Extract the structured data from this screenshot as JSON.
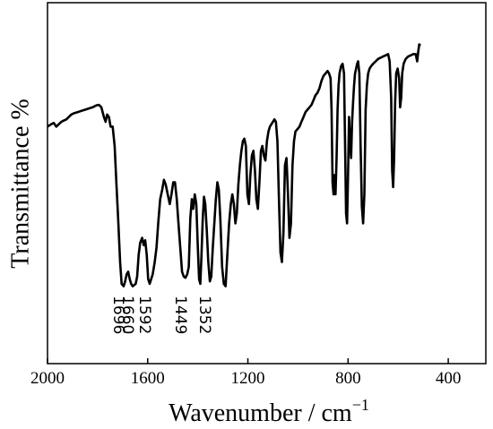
{
  "chart_data": {
    "type": "line",
    "title": "",
    "xlabel": "Wavenumber / cm",
    "xlabel_superscript": "−1",
    "ylabel": "Transmittance %",
    "xlim": [
      2000,
      250
    ],
    "x_reversed": true,
    "ylim": [
      0,
      100
    ],
    "y_tick_labels_shown": false,
    "grid": false,
    "x_ticks": [
      {
        "value": 2000,
        "label": "2000"
      },
      {
        "value": 1600,
        "label": "1600"
      },
      {
        "value": 1200,
        "label": "1200"
      },
      {
        "value": 800,
        "label": "800"
      },
      {
        "value": 400,
        "label": "400"
      }
    ],
    "series": [
      {
        "color": "#000000",
        "points": [
          [
            2000,
            68
          ],
          [
            1985,
            69
          ],
          [
            1975,
            69.5
          ],
          [
            1965,
            68
          ],
          [
            1955,
            69
          ],
          [
            1945,
            70
          ],
          [
            1935,
            70.5
          ],
          [
            1925,
            71
          ],
          [
            1915,
            72
          ],
          [
            1905,
            73
          ],
          [
            1895,
            73.5
          ],
          [
            1880,
            74
          ],
          [
            1865,
            74.5
          ],
          [
            1850,
            75
          ],
          [
            1835,
            75.5
          ],
          [
            1820,
            76
          ],
          [
            1805,
            76.8
          ],
          [
            1795,
            77
          ],
          [
            1785,
            76
          ],
          [
            1775,
            72
          ],
          [
            1768,
            70
          ],
          [
            1762,
            73
          ],
          [
            1755,
            72
          ],
          [
            1748,
            68
          ],
          [
            1740,
            68
          ],
          [
            1732,
            60
          ],
          [
            1725,
            45
          ],
          [
            1718,
            30
          ],
          [
            1710,
            12
          ],
          [
            1704,
            3
          ],
          [
            1696,
            2
          ],
          [
            1690,
            4
          ],
          [
            1684,
            7
          ],
          [
            1678,
            8
          ],
          [
            1672,
            5
          ],
          [
            1666,
            3
          ],
          [
            1660,
            2
          ],
          [
            1654,
            2.5
          ],
          [
            1648,
            3
          ],
          [
            1642,
            6
          ],
          [
            1636,
            15
          ],
          [
            1630,
            20
          ],
          [
            1622,
            22
          ],
          [
            1616,
            19
          ],
          [
            1610,
            21
          ],
          [
            1604,
            15
          ],
          [
            1598,
            5
          ],
          [
            1592,
            3
          ],
          [
            1586,
            5
          ],
          [
            1580,
            7
          ],
          [
            1572,
            12
          ],
          [
            1565,
            18
          ],
          [
            1558,
            28
          ],
          [
            1550,
            38
          ],
          [
            1542,
            42
          ],
          [
            1535,
            46
          ],
          [
            1528,
            44
          ],
          [
            1520,
            40
          ],
          [
            1512,
            36
          ],
          [
            1505,
            40
          ],
          [
            1498,
            45
          ],
          [
            1491,
            45
          ],
          [
            1484,
            38
          ],
          [
            1477,
            28
          ],
          [
            1470,
            18
          ],
          [
            1463,
            8
          ],
          [
            1456,
            6
          ],
          [
            1449,
            5.5
          ],
          [
            1442,
            7
          ],
          [
            1436,
            10
          ],
          [
            1430,
            30
          ],
          [
            1424,
            38
          ],
          [
            1418,
            34
          ],
          [
            1412,
            40
          ],
          [
            1406,
            36
          ],
          [
            1400,
            18
          ],
          [
            1395,
            5
          ],
          [
            1390,
            3
          ],
          [
            1385,
            15
          ],
          [
            1380,
            30
          ],
          [
            1375,
            39
          ],
          [
            1370,
            36
          ],
          [
            1364,
            25
          ],
          [
            1358,
            12
          ],
          [
            1352,
            4
          ],
          [
            1346,
            6
          ],
          [
            1340,
            18
          ],
          [
            1334,
            28
          ],
          [
            1328,
            38
          ],
          [
            1322,
            45
          ],
          [
            1316,
            42
          ],
          [
            1310,
            30
          ],
          [
            1303,
            10
          ],
          [
            1296,
            3
          ],
          [
            1289,
            2
          ],
          [
            1282,
            15
          ],
          [
            1275,
            28
          ],
          [
            1268,
            36
          ],
          [
            1262,
            40
          ],
          [
            1256,
            36
          ],
          [
            1250,
            28
          ],
          [
            1244,
            32
          ],
          [
            1238,
            44
          ],
          [
            1232,
            52
          ],
          [
            1226,
            58
          ],
          [
            1220,
            62
          ],
          [
            1214,
            63
          ],
          [
            1208,
            60
          ],
          [
            1202,
            40
          ],
          [
            1196,
            36
          ],
          [
            1190,
            48
          ],
          [
            1184,
            56
          ],
          [
            1178,
            58
          ],
          [
            1172,
            50
          ],
          [
            1166,
            38
          ],
          [
            1160,
            34
          ],
          [
            1154,
            45
          ],
          [
            1148,
            58
          ],
          [
            1142,
            60
          ],
          [
            1136,
            56
          ],
          [
            1130,
            54
          ],
          [
            1124,
            62
          ],
          [
            1118,
            66
          ],
          [
            1112,
            68
          ],
          [
            1106,
            69
          ],
          [
            1100,
            70
          ],
          [
            1094,
            71
          ],
          [
            1088,
            70
          ],
          [
            1082,
            62
          ],
          [
            1076,
            38
          ],
          [
            1070,
            16
          ],
          [
            1064,
            12
          ],
          [
            1058,
            24
          ],
          [
            1052,
            52
          ],
          [
            1046,
            55
          ],
          [
            1040,
            40
          ],
          [
            1034,
            22
          ],
          [
            1028,
            28
          ],
          [
            1022,
            52
          ],
          [
            1016,
            62
          ],
          [
            1010,
            66
          ],
          [
            1002,
            67
          ],
          [
            994,
            68
          ],
          [
            986,
            70
          ],
          [
            978,
            72
          ],
          [
            970,
            74
          ],
          [
            962,
            75
          ],
          [
            954,
            76
          ],
          [
            946,
            77
          ],
          [
            938,
            79
          ],
          [
            930,
            81
          ],
          [
            922,
            82
          ],
          [
            914,
            84
          ],
          [
            906,
            87
          ],
          [
            898,
            89
          ],
          [
            890,
            90
          ],
          [
            882,
            91
          ],
          [
            876,
            90
          ],
          [
            870,
            88
          ],
          [
            866,
            75
          ],
          [
            862,
            45
          ],
          [
            858,
            40
          ],
          [
            854,
            48
          ],
          [
            850,
            40
          ],
          [
            846,
            55
          ],
          [
            842,
            75
          ],
          [
            838,
            85
          ],
          [
            834,
            90
          ],
          [
            828,
            93
          ],
          [
            822,
            94
          ],
          [
            816,
            90
          ],
          [
            812,
            60
          ],
          [
            808,
            32
          ],
          [
            804,
            28
          ],
          [
            800,
            48
          ],
          [
            796,
            72
          ],
          [
            792,
            62
          ],
          [
            788,
            55
          ],
          [
            784,
            70
          ],
          [
            780,
            78
          ],
          [
            776,
            85
          ],
          [
            772,
            90
          ],
          [
            768,
            92
          ],
          [
            764,
            94
          ],
          [
            760,
            95
          ],
          [
            755,
            90
          ],
          [
            750,
            60
          ],
          [
            745,
            35
          ],
          [
            740,
            28
          ],
          [
            735,
            40
          ],
          [
            730,
            75
          ],
          [
            725,
            85
          ],
          [
            720,
            90
          ],
          [
            714,
            92
          ],
          [
            708,
            93
          ],
          [
            700,
            94
          ],
          [
            690,
            95
          ],
          [
            680,
            96
          ],
          [
            670,
            96.5
          ],
          [
            660,
            97
          ],
          [
            650,
            97.5
          ],
          [
            640,
            98
          ],
          [
            634,
            95
          ],
          [
            628,
            80
          ],
          [
            624,
            50
          ],
          [
            620,
            43
          ],
          [
            616,
            55
          ],
          [
            612,
            78
          ],
          [
            608,
            90
          ],
          [
            602,
            92
          ],
          [
            596,
            88
          ],
          [
            592,
            76
          ],
          [
            588,
            80
          ],
          [
            584,
            90
          ],
          [
            578,
            94
          ],
          [
            570,
            96
          ],
          [
            560,
            97
          ],
          [
            550,
            97.5
          ],
          [
            540,
            98
          ],
          [
            530,
            98
          ],
          [
            524,
            95
          ],
          [
            520,
            99
          ],
          [
            516,
            102
          ],
          [
            511,
            101.5
          ]
        ]
      }
    ],
    "annotations": [
      {
        "label": "1696",
        "x": 1696,
        "y": 2
      },
      {
        "label": "1660",
        "x": 1660,
        "y": 2
      },
      {
        "label": "1592",
        "x": 1592,
        "y": 3
      },
      {
        "label": "1449",
        "x": 1449,
        "y": 5.5
      },
      {
        "label": "1352",
        "x": 1352,
        "y": 4
      }
    ]
  }
}
